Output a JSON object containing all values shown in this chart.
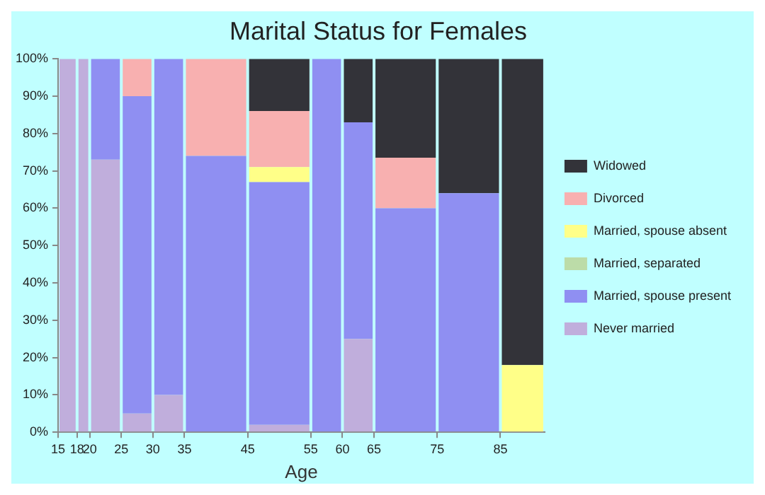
{
  "chart_data": {
    "type": "bar",
    "stacked": true,
    "title": "Marital Status for Females",
    "xlabel": "Age",
    "x": [
      16.5,
      19,
      22.5,
      27.5,
      32.5,
      40,
      50,
      57.5,
      62.5,
      70,
      80,
      88.5
    ],
    "xlim": [
      15,
      92
    ],
    "xticks": [
      15,
      18,
      20,
      25,
      30,
      35,
      45,
      55,
      60,
      65,
      75,
      85
    ],
    "ylim": [
      0,
      100
    ],
    "yticks": [
      {
        "value": 0,
        "label": "0%"
      },
      {
        "value": 10,
        "label": "10%"
      },
      {
        "value": 20,
        "label": "20%"
      },
      {
        "value": 30,
        "label": "30%"
      },
      {
        "value": 40,
        "label": "40%"
      },
      {
        "value": 50,
        "label": "50%"
      },
      {
        "value": 60,
        "label": "60%"
      },
      {
        "value": 70,
        "label": "70%"
      },
      {
        "value": 80,
        "label": "80%"
      },
      {
        "value": 90,
        "label": "90%"
      },
      {
        "value": 100,
        "label": "100%"
      }
    ],
    "grid": false,
    "legend": "right",
    "series": [
      {
        "name": "Never married",
        "color": "#c0aedc",
        "values": [
          100,
          100,
          73,
          5,
          10,
          0,
          2,
          0,
          25,
          0,
          0,
          0
        ]
      },
      {
        "name": "Married, spouse present",
        "color": "#8f8ff2",
        "values": [
          0,
          0,
          27,
          85,
          90,
          74,
          65,
          100,
          58,
          60,
          64,
          0
        ]
      },
      {
        "name": "Married, separated",
        "color": "#bcdca8",
        "values": [
          0,
          0,
          0,
          0,
          0,
          0,
          0,
          0,
          0,
          0,
          0,
          0
        ]
      },
      {
        "name": "Married, spouse absent",
        "color": "#ffff88",
        "values": [
          0,
          0,
          0,
          0,
          0,
          0,
          4,
          0,
          0,
          0,
          0,
          18
        ]
      },
      {
        "name": "Divorced",
        "color": "#f8b0b0",
        "values": [
          0,
          0,
          0,
          10,
          0,
          26,
          15,
          0,
          0,
          13.5,
          0,
          0
        ]
      },
      {
        "name": "Widowed",
        "color": "#333339",
        "values": [
          0,
          0,
          0,
          0,
          0,
          0,
          14,
          0,
          17,
          26.5,
          36,
          82
        ]
      }
    ]
  }
}
